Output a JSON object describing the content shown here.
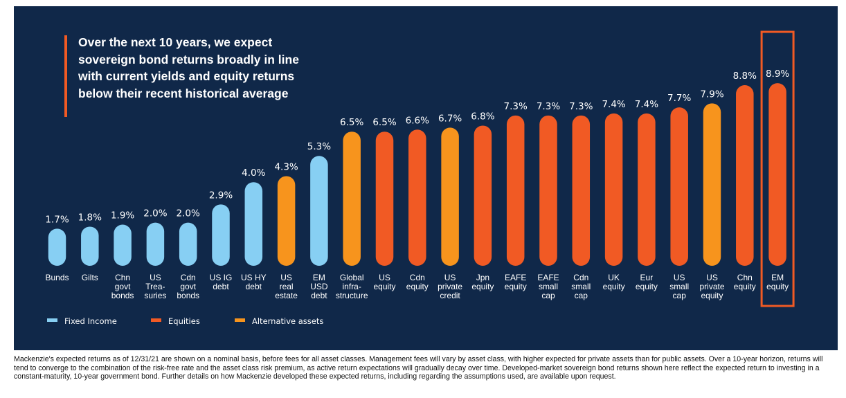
{
  "headline": "Over the next 10 years, we expect sovereign bond returns broadly in line with current yields and equity returns below their recent historical average",
  "footnote": "Mackenzie's expected returns as of 12/31/21 are shown on a nominal basis, before fees for all asset classes.  Management fees will vary by asset class, with higher expected for private assets than for public assets.  Over a 10-year horizon, returns will tend to converge to the combination of the risk-free rate and the asset class risk premium, as active return expectations will gradually decay over time. Developed-market sovereign bond returns shown here reflect the expected return to investing in a constant-maturity, 10-year government bond. Further details on how Mackenzie developed these expected returns, including regarding the assumptions used, are available upon request.",
  "colors": {
    "background": "#102849",
    "Fixed Income": "#87cff3",
    "Equities": "#f15a24",
    "Alternative assets": "#f7941d",
    "highlight_box": "#f15a24"
  },
  "chart_data": {
    "type": "bar",
    "value_format": "percent",
    "categories": [
      [
        "Bunds"
      ],
      [
        "Gilts"
      ],
      [
        "Chn",
        "govt",
        "bonds"
      ],
      [
        "US",
        "Trea-",
        "suries"
      ],
      [
        "Cdn",
        "govt",
        "bonds"
      ],
      [
        "US IG",
        "debt"
      ],
      [
        "US HY",
        "debt"
      ],
      [
        "US",
        "real",
        "estate"
      ],
      [
        "EM",
        "USD",
        "debt"
      ],
      [
        "Global",
        "infra-",
        "structure"
      ],
      [
        "US",
        "equity"
      ],
      [
        "Cdn",
        "equity"
      ],
      [
        "US",
        "private",
        "credit"
      ],
      [
        "Jpn",
        "equity"
      ],
      [
        "EAFE",
        "equity"
      ],
      [
        "EAFE",
        "small",
        "cap"
      ],
      [
        "Cdn",
        "small",
        "cap"
      ],
      [
        "UK",
        "equity"
      ],
      [
        "Eur",
        "equity"
      ],
      [
        "US",
        "small",
        "cap"
      ],
      [
        "US",
        "private",
        "equity"
      ],
      [
        "Chn",
        "equity"
      ],
      [
        "EM",
        "equity"
      ]
    ],
    "values": [
      1.7,
      1.8,
      1.9,
      2.0,
      2.0,
      2.9,
      4.0,
      4.3,
      5.3,
      6.5,
      6.5,
      6.6,
      6.7,
      6.8,
      7.3,
      7.3,
      7.3,
      7.4,
      7.4,
      7.7,
      7.9,
      8.8,
      8.9
    ],
    "groups": [
      "Fixed Income",
      "Fixed Income",
      "Fixed Income",
      "Fixed Income",
      "Fixed Income",
      "Fixed Income",
      "Fixed Income",
      "Alternative assets",
      "Fixed Income",
      "Alternative assets",
      "Equities",
      "Equities",
      "Alternative assets",
      "Equities",
      "Equities",
      "Equities",
      "Equities",
      "Equities",
      "Equities",
      "Equities",
      "Alternative assets",
      "Equities",
      "Equities"
    ],
    "legend": [
      "Fixed Income",
      "Equities",
      "Alternative assets"
    ],
    "legend_position": "bottom-left",
    "highlighted": [
      "EM",
      "equity"
    ],
    "grid": false
  }
}
